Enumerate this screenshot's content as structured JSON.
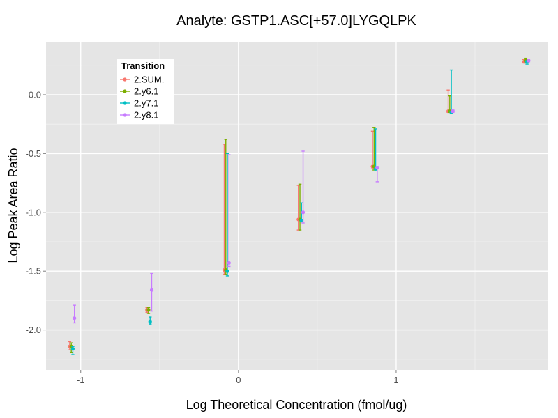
{
  "chart_data": {
    "type": "scatter",
    "title": "Analyte: GSTP1.ASC[+57.0]LYGQLPK",
    "xlabel": "Log Theoretical Concentration (fmol/ug)",
    "ylabel": "Log Peak Area Ratio",
    "xlim": [
      -1.22,
      1.96
    ],
    "ylim": [
      -2.34,
      0.45
    ],
    "x_ticks": [
      -1,
      0,
      1
    ],
    "x_tick_labels": [
      "-1",
      "0",
      "1"
    ],
    "y_ticks": [
      -2.0,
      -1.5,
      -1.0,
      -0.5,
      0.0
    ],
    "y_tick_labels": [
      "-2.0",
      "-1.5",
      "-1.0",
      "-0.5",
      "0.0"
    ],
    "grid": true,
    "legend": {
      "title": "Transition",
      "placement": "top-left",
      "entries": [
        "2.SUM.",
        "2.y6.1",
        "2.y7.1",
        "2.y8.1"
      ]
    },
    "series": [
      {
        "name": "2.SUM.",
        "color": "#F8766D",
        "points": [
          {
            "x": -1.07,
            "y": -2.14,
            "ymin": -2.17,
            "ymax": -2.1
          },
          {
            "x": -0.58,
            "y": -1.83,
            "ymin": -1.85,
            "ymax": -1.81
          },
          {
            "x": -0.09,
            "y": -1.49,
            "ymin": -1.53,
            "ymax": -0.42
          },
          {
            "x": 0.38,
            "y": -1.06,
            "ymin": -1.15,
            "ymax": -0.77
          },
          {
            "x": 0.85,
            "y": -0.61,
            "ymin": -0.63,
            "ymax": -0.31
          },
          {
            "x": 1.33,
            "y": -0.14,
            "ymin": -0.15,
            "ymax": 0.04
          },
          {
            "x": 1.81,
            "y": 0.28,
            "ymin": 0.27,
            "ymax": 0.3
          }
        ]
      },
      {
        "name": "2.y6.1",
        "color": "#7CAE00",
        "points": [
          {
            "x": -1.06,
            "y": -2.14,
            "ymin": -2.19,
            "ymax": -2.11
          },
          {
            "x": -0.57,
            "y": -1.83,
            "ymin": -1.86,
            "ymax": -1.81
          },
          {
            "x": -0.08,
            "y": -1.49,
            "ymin": -1.53,
            "ymax": -0.38
          },
          {
            "x": 0.39,
            "y": -1.06,
            "ymin": -1.15,
            "ymax": -0.76
          },
          {
            "x": 0.86,
            "y": -0.61,
            "ymin": -0.64,
            "ymax": -0.28
          },
          {
            "x": 1.34,
            "y": -0.14,
            "ymin": -0.15,
            "ymax": -0.01
          },
          {
            "x": 1.82,
            "y": 0.29,
            "ymin": 0.27,
            "ymax": 0.31
          }
        ]
      },
      {
        "name": "2.y7.1",
        "color": "#00BFC4",
        "points": [
          {
            "x": -1.05,
            "y": -2.16,
            "ymin": -2.21,
            "ymax": -2.14
          },
          {
            "x": -0.56,
            "y": -1.93,
            "ymin": -1.95,
            "ymax": -1.89
          },
          {
            "x": -0.07,
            "y": -1.5,
            "ymin": -1.54,
            "ymax": -0.5
          },
          {
            "x": 0.4,
            "y": -1.07,
            "ymin": -1.08,
            "ymax": -0.92
          },
          {
            "x": 0.87,
            "y": -0.63,
            "ymin": -0.64,
            "ymax": -0.29
          },
          {
            "x": 1.35,
            "y": -0.15,
            "ymin": -0.16,
            "ymax": 0.21
          },
          {
            "x": 1.83,
            "y": 0.28,
            "ymin": 0.26,
            "ymax": 0.29
          }
        ]
      },
      {
        "name": "2.y8.1",
        "color": "#C77CFF",
        "points": [
          {
            "x": -1.04,
            "y": -1.9,
            "ymin": -1.94,
            "ymax": -1.79
          },
          {
            "x": -0.55,
            "y": -1.66,
            "ymin": -1.84,
            "ymax": -1.52
          },
          {
            "x": -0.06,
            "y": -1.43,
            "ymin": -1.46,
            "ymax": -0.51
          },
          {
            "x": 0.41,
            "y": -1.0,
            "ymin": -1.09,
            "ymax": -0.48
          },
          {
            "x": 0.88,
            "y": -0.62,
            "ymin": -0.74,
            "ymax": -0.61
          },
          {
            "x": 1.36,
            "y": -0.14,
            "ymin": -0.15,
            "ymax": -0.13
          },
          {
            "x": 1.84,
            "y": 0.29,
            "ymin": 0.28,
            "ymax": 0.3
          }
        ]
      }
    ]
  }
}
